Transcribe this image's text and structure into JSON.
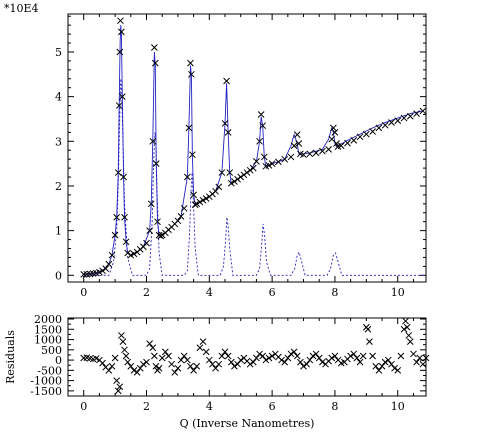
{
  "chart_data": [
    {
      "type": "scatter",
      "scale_label": "*10E4",
      "xlabel": "",
      "ylabel": "",
      "xlim": [
        -0.5,
        10.9
      ],
      "ylim": [
        -0.15,
        5.85
      ],
      "x_ticks": [
        0,
        2,
        4,
        6,
        8,
        10
      ],
      "y_ticks": [
        0,
        1,
        2,
        3,
        4,
        5
      ],
      "grid": false,
      "series": [
        {
          "marker": "x",
          "color": "#000000",
          "x": [
            0.0,
            0.1,
            0.2,
            0.3,
            0.4,
            0.5,
            0.6,
            0.7,
            0.8,
            0.9,
            1.0,
            1.05,
            1.1,
            1.13,
            1.15,
            1.17,
            1.2,
            1.23,
            1.27,
            1.3,
            1.35,
            1.4,
            1.5,
            1.6,
            1.7,
            1.8,
            1.9,
            2.0,
            2.1,
            2.15,
            2.2,
            2.25,
            2.28,
            2.31,
            2.35,
            2.4,
            2.45,
            2.5,
            2.6,
            2.7,
            2.8,
            2.9,
            3.0,
            3.1,
            3.2,
            3.3,
            3.35,
            3.4,
            3.43,
            3.46,
            3.5,
            3.55,
            3.6,
            3.7,
            3.8,
            3.9,
            4.0,
            4.1,
            4.2,
            4.3,
            4.4,
            4.5,
            4.55,
            4.6,
            4.65,
            4.7,
            4.8,
            4.9,
            5.0,
            5.1,
            5.2,
            5.3,
            5.4,
            5.5,
            5.6,
            5.65,
            5.7,
            5.75,
            5.8,
            5.9,
            6.0,
            6.2,
            6.4,
            6.6,
            6.7,
            6.8,
            6.85,
            6.9,
            7.0,
            7.2,
            7.4,
            7.6,
            7.8,
            7.9,
            7.95,
            8.0,
            8.05,
            8.1,
            8.2,
            8.4,
            8.6,
            8.8,
            9.0,
            9.2,
            9.4,
            9.6,
            9.8,
            10.0,
            10.2,
            10.4,
            10.6,
            10.8
          ],
          "y": [
            0.02,
            0.02,
            0.03,
            0.04,
            0.05,
            0.07,
            0.1,
            0.15,
            0.25,
            0.45,
            0.9,
            1.3,
            2.3,
            3.8,
            5.0,
            5.7,
            5.45,
            4.0,
            2.2,
            1.3,
            0.75,
            0.5,
            0.45,
            0.48,
            0.52,
            0.58,
            0.64,
            0.72,
            1.0,
            1.6,
            3.0,
            5.1,
            4.75,
            2.5,
            1.2,
            0.9,
            0.88,
            0.9,
            0.95,
            1.02,
            1.08,
            1.15,
            1.22,
            1.32,
            1.5,
            2.2,
            3.3,
            4.75,
            4.5,
            2.7,
            1.8,
            1.58,
            1.6,
            1.64,
            1.68,
            1.72,
            1.76,
            1.82,
            1.88,
            1.98,
            2.3,
            3.4,
            4.35,
            3.2,
            2.3,
            2.06,
            2.1,
            2.15,
            2.2,
            2.25,
            2.3,
            2.35,
            2.4,
            2.55,
            3.0,
            3.6,
            3.35,
            2.65,
            2.44,
            2.46,
            2.5,
            2.54,
            2.6,
            2.65,
            2.9,
            3.15,
            2.95,
            2.72,
            2.7,
            2.72,
            2.74,
            2.78,
            2.82,
            3.05,
            3.3,
            3.2,
            2.95,
            2.88,
            2.9,
            2.96,
            3.02,
            3.1,
            3.16,
            3.22,
            3.3,
            3.36,
            3.42,
            3.46,
            3.52,
            3.56,
            3.62,
            3.68
          ]
        },
        {
          "type": "line",
          "style": "solid",
          "color": "#2020c0",
          "x": [
            0.0,
            0.2,
            0.4,
            0.6,
            0.8,
            0.9,
            1.0,
            1.05,
            1.1,
            1.13,
            1.16,
            1.18,
            1.2,
            1.23,
            1.27,
            1.3,
            1.35,
            1.4,
            1.5,
            1.7,
            1.9,
            2.1,
            2.15,
            2.2,
            2.25,
            2.28,
            2.31,
            2.35,
            2.4,
            2.5,
            2.7,
            2.9,
            3.1,
            3.3,
            3.35,
            3.4,
            3.43,
            3.46,
            3.5,
            3.55,
            3.6,
            3.8,
            4.0,
            4.2,
            4.4,
            4.5,
            4.55,
            4.6,
            4.65,
            4.7,
            4.9,
            5.1,
            5.3,
            5.5,
            5.6,
            5.65,
            5.7,
            5.75,
            5.8,
            6.0,
            6.2,
            6.4,
            6.6,
            6.7,
            6.8,
            6.85,
            6.9,
            7.0,
            7.2,
            7.4,
            7.6,
            7.8,
            7.9,
            7.95,
            8.0,
            8.05,
            8.1,
            8.4,
            8.8,
            9.2,
            9.6,
            10.0,
            10.4,
            10.8
          ],
          "y": [
            0.02,
            0.03,
            0.05,
            0.1,
            0.25,
            0.45,
            0.9,
            1.3,
            2.3,
            3.8,
            5.2,
            5.6,
            5.4,
            4.0,
            2.2,
            1.3,
            0.75,
            0.5,
            0.45,
            0.52,
            0.64,
            1.0,
            1.6,
            3.0,
            5.0,
            4.7,
            2.5,
            1.2,
            0.9,
            0.9,
            1.02,
            1.15,
            1.32,
            2.2,
            3.3,
            4.7,
            4.45,
            2.7,
            1.8,
            1.58,
            1.6,
            1.68,
            1.76,
            1.88,
            2.3,
            3.4,
            4.3,
            3.2,
            2.3,
            2.06,
            2.15,
            2.25,
            2.35,
            2.55,
            3.0,
            3.55,
            3.35,
            2.65,
            2.44,
            2.5,
            2.54,
            2.6,
            2.9,
            3.15,
            2.95,
            2.72,
            2.7,
            2.72,
            2.74,
            2.78,
            2.82,
            3.05,
            3.3,
            3.2,
            2.95,
            2.88,
            2.9,
            3.02,
            3.16,
            3.3,
            3.42,
            3.52,
            3.62,
            3.68
          ]
        },
        {
          "type": "line",
          "style": "dotted",
          "color": "#2020c0",
          "x": [
            0.0,
            0.8,
            0.95,
            1.05,
            1.1,
            1.15,
            1.18,
            1.21,
            1.25,
            1.3,
            1.4,
            1.55,
            2.0,
            2.1,
            2.18,
            2.23,
            2.27,
            2.3,
            2.34,
            2.4,
            2.5,
            3.2,
            3.3,
            3.37,
            3.42,
            3.45,
            3.49,
            3.55,
            3.65,
            4.35,
            4.45,
            4.52,
            4.56,
            4.6,
            4.65,
            4.75,
            5.5,
            5.6,
            5.67,
            5.71,
            5.76,
            5.82,
            5.95,
            6.6,
            6.72,
            6.8,
            6.86,
            6.94,
            7.05,
            7.75,
            7.86,
            7.95,
            8.02,
            8.1,
            8.22,
            10.9
          ],
          "y": [
            0.0,
            0.0,
            0.3,
            1.0,
            2.0,
            3.6,
            4.4,
            4.1,
            3.0,
            1.6,
            0.4,
            0.0,
            0.0,
            0.15,
            1.2,
            2.6,
            3.2,
            3.0,
            1.8,
            0.5,
            0.0,
            0.0,
            0.1,
            0.9,
            1.95,
            2.3,
            1.7,
            0.6,
            0.0,
            0.0,
            0.2,
            0.8,
            1.3,
            1.1,
            0.6,
            0.0,
            0.0,
            0.15,
            0.7,
            1.15,
            0.9,
            0.3,
            0.0,
            0.0,
            0.15,
            0.45,
            0.52,
            0.3,
            0.0,
            0.0,
            0.15,
            0.45,
            0.5,
            0.3,
            0.0,
            0.0
          ]
        }
      ]
    },
    {
      "type": "scatter",
      "xlabel": "Q (Inverse Nanometres)",
      "ylabel": "Residuals",
      "xlim": [
        -0.5,
        10.9
      ],
      "ylim": [
        -1750,
        2050
      ],
      "x_ticks": [
        0,
        2,
        4,
        6,
        8,
        10
      ],
      "y_ticks": [
        -1500,
        -1000,
        -500,
        0,
        500,
        1000,
        1500,
        2000
      ],
      "grid": false,
      "series": [
        {
          "marker": "x",
          "color": "#000000",
          "x": [
            0.0,
            0.1,
            0.2,
            0.3,
            0.4,
            0.5,
            0.6,
            0.7,
            0.8,
            0.9,
            1.0,
            1.05,
            1.1,
            1.15,
            1.2,
            1.25,
            1.3,
            1.35,
            1.4,
            1.5,
            1.6,
            1.7,
            1.8,
            1.9,
            2.0,
            2.1,
            2.2,
            2.25,
            2.3,
            2.35,
            2.4,
            2.5,
            2.6,
            2.7,
            2.8,
            2.9,
            3.0,
            3.1,
            3.2,
            3.3,
            3.4,
            3.5,
            3.6,
            3.7,
            3.8,
            3.9,
            4.0,
            4.1,
            4.2,
            4.3,
            4.4,
            4.5,
            4.6,
            4.7,
            4.8,
            4.9,
            5.0,
            5.1,
            5.2,
            5.3,
            5.4,
            5.5,
            5.6,
            5.7,
            5.8,
            5.9,
            6.0,
            6.1,
            6.2,
            6.3,
            6.4,
            6.5,
            6.6,
            6.7,
            6.8,
            6.9,
            7.0,
            7.1,
            7.2,
            7.3,
            7.4,
            7.5,
            7.6,
            7.7,
            7.8,
            7.9,
            8.0,
            8.1,
            8.2,
            8.3,
            8.4,
            8.5,
            8.6,
            8.7,
            8.8,
            8.9,
            9.0,
            9.05,
            9.1,
            9.2,
            9.3,
            9.4,
            9.5,
            9.6,
            9.7,
            9.8,
            9.9,
            10.0,
            10.1,
            10.2,
            10.25,
            10.3,
            10.35,
            10.4,
            10.5,
            10.6,
            10.7,
            10.8,
            10.9
          ],
          "y": [
            100,
            120,
            80,
            50,
            80,
            0,
            -150,
            -350,
            -500,
            -300,
            100,
            -1000,
            -1500,
            -1300,
            1200,
            900,
            500,
            200,
            -100,
            -300,
            -500,
            -600,
            -400,
            -200,
            -100,
            800,
            600,
            200,
            -300,
            -500,
            -400,
            100,
            400,
            200,
            -200,
            -600,
            -400,
            0,
            200,
            0,
            -300,
            -500,
            -300,
            600,
            900,
            400,
            0,
            -200,
            -400,
            -200,
            200,
            400,
            200,
            -100,
            -300,
            -200,
            0,
            100,
            -50,
            -200,
            -100,
            100,
            300,
            200,
            0,
            100,
            200,
            300,
            150,
            0,
            -100,
            100,
            300,
            400,
            200,
            -100,
            -300,
            -200,
            0,
            200,
            300,
            100,
            -100,
            -200,
            -50,
            100,
            200,
            0,
            -150,
            -100,
            50,
            200,
            300,
            100,
            -100,
            200,
            1600,
            1500,
            900,
            200,
            -300,
            -500,
            -300,
            -100,
            0,
            -200,
            -400,
            -500,
            200,
            1500,
            1900,
            1600,
            1200,
            900,
            300,
            -100,
            100,
            -200,
            100
          ]
        }
      ]
    }
  ]
}
